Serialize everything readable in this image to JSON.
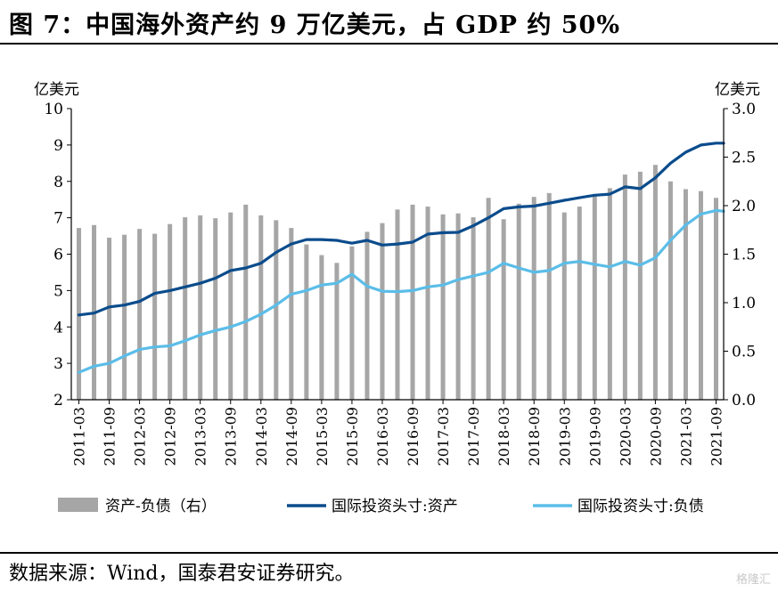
{
  "header": {
    "title": "图 7：中国海外资产约 9 万亿美元，占 GDP 约 50%"
  },
  "footer": {
    "source": "数据来源：Wind，国泰君安证券研究。",
    "watermark": "格隆汇"
  },
  "chart_data": {
    "type": "bar+line",
    "left_axis": {
      "unit": "亿美元",
      "min": 2,
      "max": 10,
      "ticks": [
        "2",
        "3",
        "4",
        "5",
        "6",
        "7",
        "8",
        "9",
        "10"
      ]
    },
    "right_axis": {
      "unit": "亿美元",
      "min": 0,
      "max": 3,
      "ticks": [
        "0.0",
        "0.5",
        "1.0",
        "1.5",
        "2.0",
        "2.5",
        "3.0"
      ]
    },
    "x_tick_labels": [
      "2011-03",
      "2011-09",
      "2012-03",
      "2012-09",
      "2013-03",
      "2013-09",
      "2014-03",
      "2014-09",
      "2015-03",
      "2015-09",
      "2016-03",
      "2016-09",
      "2017-03",
      "2017-09",
      "2018-03",
      "2018-09",
      "2019-03",
      "2019-09",
      "2020-03",
      "2020-09",
      "2021-03",
      "2021-09"
    ],
    "months": [
      "2011-03",
      "2011-06",
      "2011-09",
      "2011-12",
      "2012-03",
      "2012-06",
      "2012-09",
      "2012-12",
      "2013-03",
      "2013-06",
      "2013-09",
      "2013-12",
      "2014-03",
      "2014-06",
      "2014-09",
      "2014-12",
      "2015-03",
      "2015-06",
      "2015-09",
      "2015-12",
      "2016-03",
      "2016-06",
      "2016-09",
      "2016-12",
      "2017-03",
      "2017-06",
      "2017-09",
      "2017-12",
      "2018-03",
      "2018-06",
      "2018-09",
      "2018-12",
      "2019-03",
      "2019-06",
      "2019-09",
      "2019-12",
      "2020-03",
      "2020-06",
      "2020-09",
      "2020-12",
      "2021-03",
      "2021-06",
      "2021-09"
    ],
    "series": [
      {
        "name": "资产-负债（右）",
        "kind": "bar",
        "axis": "right",
        "color": "#a6a6a6",
        "values": [
          1.77,
          1.8,
          1.67,
          1.7,
          1.76,
          1.71,
          1.81,
          1.88,
          1.9,
          1.87,
          1.93,
          2.01,
          1.9,
          1.85,
          1.77,
          1.6,
          1.49,
          1.41,
          1.58,
          1.73,
          1.82,
          1.96,
          2.01,
          1.99,
          1.91,
          1.92,
          1.88,
          2.08,
          1.86,
          2.02,
          2.09,
          2.13,
          1.93,
          1.99,
          2.1,
          2.18,
          2.32,
          2.35,
          2.42,
          2.25,
          2.17,
          2.15,
          2.08
        ]
      },
      {
        "name": "国际投资头寸:资产",
        "kind": "line",
        "axis": "left",
        "color": "#0a4c8c",
        "points": [
          [
            0,
            4.33
          ],
          [
            1,
            4.38
          ],
          [
            2,
            4.55
          ],
          [
            3,
            4.6
          ],
          [
            4,
            4.7
          ],
          [
            5,
            4.92
          ],
          [
            6,
            5.0
          ],
          [
            7,
            5.1
          ],
          [
            8,
            5.2
          ],
          [
            9,
            5.34
          ],
          [
            10,
            5.55
          ],
          [
            11,
            5.62
          ],
          [
            12,
            5.75
          ],
          [
            13,
            6.05
          ],
          [
            14,
            6.28
          ],
          [
            15,
            6.4
          ],
          [
            16,
            6.4
          ],
          [
            17,
            6.38
          ],
          [
            18,
            6.3
          ],
          [
            19,
            6.38
          ],
          [
            20,
            6.25
          ],
          [
            21,
            6.28
          ],
          [
            22,
            6.33
          ],
          [
            23,
            6.55
          ],
          [
            24,
            6.59
          ],
          [
            25,
            6.6
          ],
          [
            26,
            6.78
          ],
          [
            27,
            7.0
          ],
          [
            28,
            7.25
          ],
          [
            29,
            7.3
          ],
          [
            30,
            7.32
          ],
          [
            31,
            7.4
          ],
          [
            32,
            7.48
          ],
          [
            33,
            7.55
          ],
          [
            34,
            7.62
          ],
          [
            35,
            7.65
          ],
          [
            36,
            7.85
          ],
          [
            37,
            7.8
          ],
          [
            38,
            8.1
          ],
          [
            39,
            8.5
          ],
          [
            40,
            8.8
          ],
          [
            41,
            9.0
          ],
          [
            42,
            9.05
          ],
          [
            42.5,
            9.05
          ]
        ]
      },
      {
        "name": "国际投资头寸:负债",
        "kind": "line",
        "axis": "left",
        "color": "#5bbde8",
        "points": [
          [
            0,
            2.75
          ],
          [
            1,
            2.92
          ],
          [
            2,
            3.0
          ],
          [
            3,
            3.2
          ],
          [
            4,
            3.38
          ],
          [
            5,
            3.45
          ],
          [
            6,
            3.48
          ],
          [
            7,
            3.62
          ],
          [
            8,
            3.78
          ],
          [
            9,
            3.9
          ],
          [
            10,
            4.0
          ],
          [
            11,
            4.15
          ],
          [
            12,
            4.35
          ],
          [
            13,
            4.6
          ],
          [
            14,
            4.9
          ],
          [
            15,
            5.0
          ],
          [
            16,
            5.15
          ],
          [
            17,
            5.2
          ],
          [
            18,
            5.45
          ],
          [
            19,
            5.12
          ],
          [
            20,
            4.98
          ],
          [
            21,
            4.97
          ],
          [
            22,
            5.0
          ],
          [
            23,
            5.1
          ],
          [
            24,
            5.15
          ],
          [
            25,
            5.3
          ],
          [
            26,
            5.4
          ],
          [
            27,
            5.5
          ],
          [
            28,
            5.75
          ],
          [
            29,
            5.62
          ],
          [
            30,
            5.5
          ],
          [
            31,
            5.55
          ],
          [
            32,
            5.75
          ],
          [
            33,
            5.8
          ],
          [
            34,
            5.72
          ],
          [
            35,
            5.65
          ],
          [
            36,
            5.8
          ],
          [
            37,
            5.7
          ],
          [
            38,
            5.9
          ],
          [
            39,
            6.38
          ],
          [
            40,
            6.8
          ],
          [
            41,
            7.1
          ],
          [
            42,
            7.2
          ],
          [
            42.5,
            7.18
          ]
        ]
      }
    ]
  }
}
